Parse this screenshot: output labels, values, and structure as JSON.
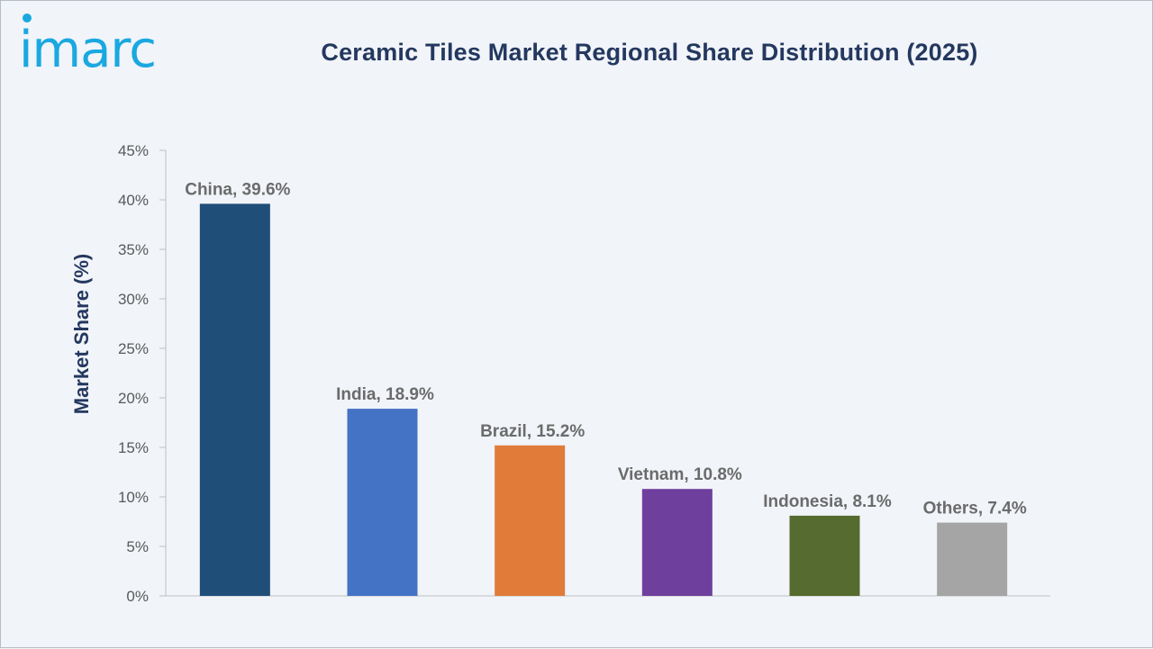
{
  "brand": {
    "logo_text": "imarc",
    "color": "#1aa8e0"
  },
  "chart_data": {
    "type": "bar",
    "title": "Ceramic Tiles Market Regional Share Distribution (2025)",
    "xlabel": "",
    "ylabel": "Market Share (%)",
    "ylim": [
      0,
      45
    ],
    "yticks": [
      0,
      5,
      10,
      15,
      20,
      25,
      30,
      35,
      40,
      45
    ],
    "ytick_labels": [
      "0%",
      "5%",
      "10%",
      "15%",
      "20%",
      "25%",
      "30%",
      "35%",
      "40%",
      "45%"
    ],
    "categories": [
      "China",
      "India",
      "Brazil",
      "Vietnam",
      "Indonesia",
      "Others"
    ],
    "values": [
      39.6,
      18.9,
      15.2,
      10.8,
      8.1,
      7.4
    ],
    "data_labels": [
      "China, 39.6%",
      "India, 18.9%",
      "Brazil, 15.2%",
      "Vietnam, 10.8%",
      "Indonesia, 8.1%",
      "Others, 7.4%"
    ],
    "colors": [
      "#1f4e79",
      "#4472c4",
      "#e07b39",
      "#6f3f9e",
      "#556b2f",
      "#a5a5a5"
    ],
    "grid": false,
    "legend": "none"
  }
}
